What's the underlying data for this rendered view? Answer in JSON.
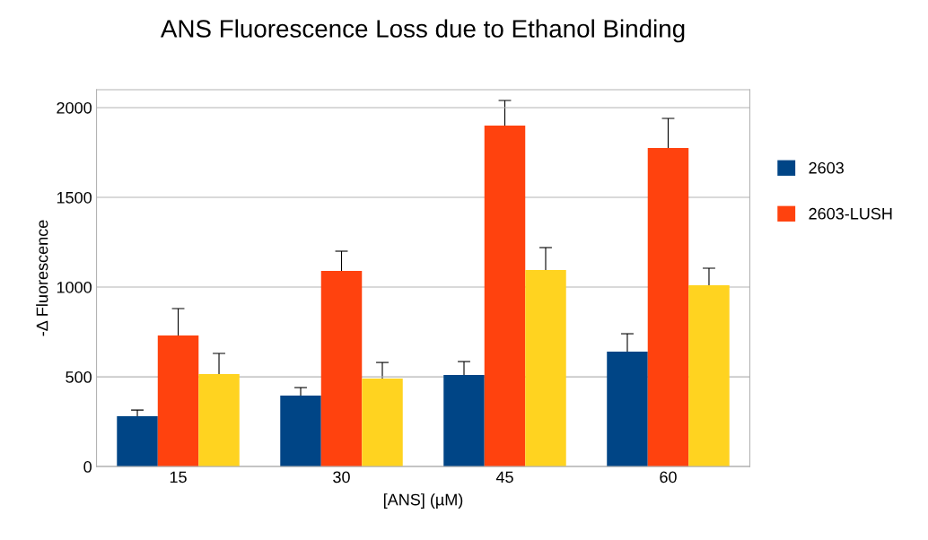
{
  "chart_data": {
    "type": "bar",
    "title": "ANS Fluorescence Loss due to Ethanol Binding",
    "xlabel": "[ANS] (µM)",
    "ylabel": "-Δ Fluorescence",
    "categories": [
      "15",
      "30",
      "45",
      "60"
    ],
    "series": [
      {
        "name": "2603",
        "color": "#004586",
        "values": [
          280,
          395,
          510,
          640
        ],
        "errors": [
          35,
          45,
          75,
          100
        ]
      },
      {
        "name": "2603-LUSH",
        "color": "#ff420e",
        "values": [
          730,
          1090,
          1900,
          1775
        ],
        "errors": [
          150,
          110,
          140,
          165
        ]
      },
      {
        "color": "#ffd320",
        "values": [
          515,
          490,
          1095,
          1010
        ],
        "errors": [
          115,
          90,
          125,
          95
        ]
      }
    ],
    "ylim": [
      0,
      2100
    ],
    "yticks": [
      0,
      500,
      1000,
      1500,
      2000
    ],
    "grid": "y",
    "legend": "right"
  }
}
